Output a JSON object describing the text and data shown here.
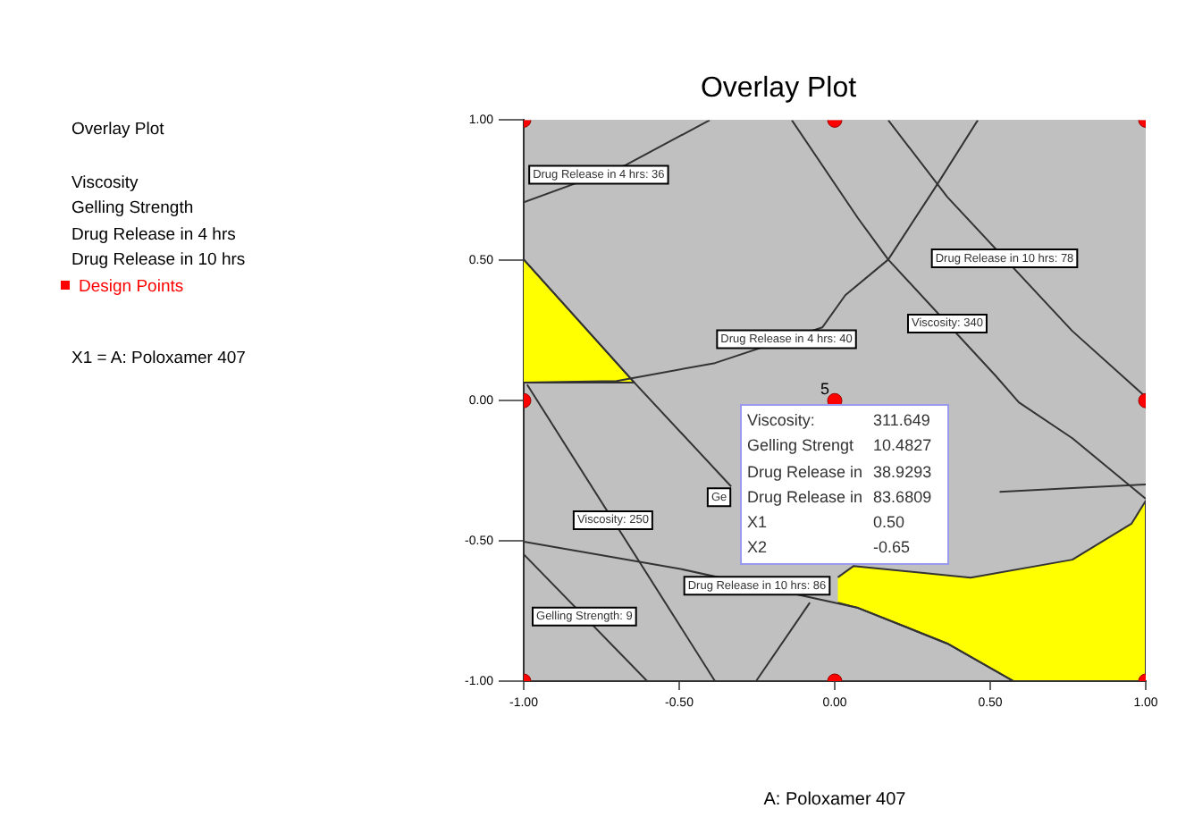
{
  "chart_data": {
    "type": "line",
    "title": "Overlay Plot",
    "subtitle": "Overlay Plot",
    "xlabel": "A: Poloxamer 407",
    "xlim": [
      -1,
      1
    ],
    "ylim": [
      -1,
      1
    ],
    "xticks": [
      {
        "value": -1,
        "label": "-1.00"
      },
      {
        "value": -0.5,
        "label": "-0.50"
      },
      {
        "value": 0,
        "label": "0.00"
      },
      {
        "value": 0.5,
        "label": "0.50"
      },
      {
        "value": 1,
        "label": "1.00"
      }
    ],
    "yticks": [
      {
        "value": -1,
        "label": "-1.00"
      },
      {
        "value": -0.5,
        "label": "-0.50"
      },
      {
        "value": 0,
        "label": "0.00"
      },
      {
        "value": 0.5,
        "label": "0.50"
      },
      {
        "value": 1,
        "label": "1.00"
      }
    ],
    "grid": false,
    "legend": "left",
    "series": [
      {
        "type": "area",
        "color": "#ffff00",
        "x": [
          -1,
          -0.644,
          -1
        ],
        "values": [
          0.503,
          0.064,
          0.064
        ]
      },
      {
        "type": "area",
        "color": "#ffff00",
        "x": [
          0.01,
          0.06,
          0.437,
          0.764,
          0.954,
          1,
          1,
          0.575,
          0.362,
          0.075,
          0.01
        ],
        "values": [
          -0.63,
          -0.59,
          -0.631,
          -0.567,
          -0.439,
          -0.357,
          -1,
          -1,
          -0.866,
          -0.739,
          -0.72
        ]
      },
      {
        "color": "#333333",
        "x": [
          -1,
          -0.672,
          -0.402
        ],
        "values": [
          0.707,
          0.84,
          1
        ]
      },
      {
        "color": "#333333",
        "x": [
          -1,
          -0.701,
          -0.385,
          -0.04,
          0.034,
          0.172,
          0.322,
          0.46
        ],
        "values": [
          0.064,
          0.07,
          0.134,
          0.261,
          0.376,
          0.503,
          0.758,
          1
        ]
      },
      {
        "color": "#333333",
        "x": [
          -0.138,
          0.075,
          0.172,
          0.517,
          0.592,
          0.764,
          1
        ],
        "values": [
          1,
          0.65,
          0.503,
          0.089,
          -0.006,
          -0.134,
          -0.35
        ]
      },
      {
        "color": "#333333",
        "x": [
          0.172,
          0.362,
          0.764,
          1
        ],
        "values": [
          1,
          0.726,
          0.248,
          0.013
        ]
      },
      {
        "color": "#333333",
        "x": [
          -1,
          -0.644,
          -0.333
        ],
        "values": [
          0.503,
          0.064,
          -0.306
        ]
      },
      {
        "color": "#333333",
        "x": [
          -0.989,
          -0.385
        ],
        "values": [
          0.057,
          -1
        ]
      },
      {
        "color": "#333333",
        "x": [
          -1,
          -0.5,
          0.075,
          0.362,
          0.575
        ],
        "values": [
          -0.503,
          -0.599,
          -0.739,
          -0.866,
          -1
        ]
      },
      {
        "color": "#333333",
        "x": [
          -1,
          -0.603
        ],
        "values": [
          -0.548,
          -1
        ]
      },
      {
        "color": "#333333",
        "x": [
          -0.253,
          -0.08
        ],
        "values": [
          -1,
          -0.72
        ]
      },
      {
        "color": "#333333",
        "x": [
          0.53,
          0.764,
          1
        ],
        "values": [
          -0.325,
          -0.312,
          -0.299
        ]
      },
      {
        "type": "scatter",
        "name": "Design Points",
        "color": "#ff0000",
        "marker": "circle",
        "x": [
          -1,
          -1,
          -1,
          0,
          0,
          0,
          1,
          1,
          1
        ],
        "values": [
          -1,
          0,
          1,
          -1,
          0,
          1,
          -1,
          0,
          1
        ]
      }
    ],
    "annotations": [
      "Viscosity",
      "Gelling Strength",
      "Drug Release in 4 hrs",
      "Drug Release in 10 hrs",
      "X1 = A: Poloxamer 407",
      {
        "text": "Drug Release in 4 hrs: 36",
        "x": -0.759,
        "y": 0.805
      },
      {
        "text": "Drug Release in 4 hrs: 40",
        "x": -0.155,
        "y": 0.219
      },
      {
        "text": "Viscosity: 340",
        "x": 0.362,
        "y": 0.275
      },
      {
        "text": "Drug Release in 10 hrs: 78",
        "x": 0.546,
        "y": 0.507
      },
      {
        "text": "Viscosity: 250",
        "x": -0.713,
        "y": -0.426
      },
      {
        "text": "Gelling Strength: 9",
        "x": -0.805,
        "y": -0.77
      },
      {
        "text": "Drug Release in 10 hrs: 86",
        "x": -0.25,
        "y": -0.66
      },
      {
        "text": "Ge",
        "x": -0.372,
        "y": -0.344
      },
      {
        "text": "5",
        "x": 0,
        "y": 0
      },
      "Viscosity:\t311.649",
      "Gelling Strengt\t10.4827",
      "Drug Release in\t38.9293",
      "Drug Release in\t83.6809",
      "X1\t0.50",
      "X2\t-0.65"
    ]
  }
}
